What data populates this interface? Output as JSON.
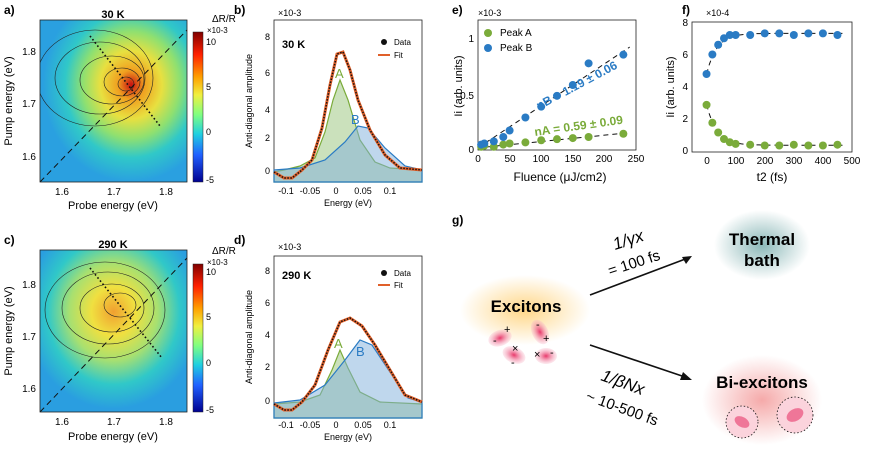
{
  "panels": {
    "a": {
      "letter": "a)",
      "title": "30 K",
      "xlabel": "Probe energy (eV)",
      "ylabel": "Pump energy (eV)",
      "xticks": [
        "1.6",
        "1.7",
        "1.8"
      ],
      "yticks": [
        "1.8",
        "1.7",
        "1.6"
      ],
      "colorbar": {
        "label": "ΔR/R",
        "exp": "×10-3",
        "ticks": [
          "10",
          "5",
          "0",
          "-5"
        ]
      }
    },
    "b": {
      "letter": "b)",
      "title": "30 K",
      "exp": "×10-3",
      "ylabel": "Anti-diagonal amplitude",
      "xlabel": "Energy (eV)",
      "xticks": [
        "-0.1",
        "-0.05",
        "0",
        "0.05",
        "0.1"
      ],
      "yticks": [
        "8",
        "6",
        "4",
        "2",
        "0"
      ],
      "legend": [
        "Data",
        "Fit"
      ],
      "peak_labels": [
        "A",
        "B"
      ]
    },
    "c": {
      "letter": "c)",
      "title": "290 K",
      "xlabel": "Probe energy (eV)",
      "ylabel": "Pump energy (eV)",
      "xticks": [
        "1.6",
        "1.7",
        "1.8"
      ],
      "yticks": [
        "1.8",
        "1.7",
        "1.6"
      ],
      "colorbar": {
        "label": "ΔR/R",
        "exp": "×10-3",
        "ticks": [
          "10",
          "5",
          "0",
          "-5"
        ]
      }
    },
    "d": {
      "letter": "d)",
      "title": "290 K",
      "exp": "×10-3",
      "ylabel": "Anti-diagonal amplitude",
      "xlabel": "Energy (eV)",
      "xticks": [
        "-0.1",
        "-0.05",
        "0",
        "0.05",
        "0.1"
      ],
      "yticks": [
        "8",
        "6",
        "4",
        "2",
        "0"
      ],
      "legend": [
        "Data",
        "Fit"
      ],
      "peak_labels": [
        "A",
        "B"
      ]
    },
    "e": {
      "letter": "e)",
      "exp": "×10-3",
      "ylabel": "Ii (arb. units)",
      "xlabel": "Fluence (μJ/cm2)",
      "xticks": [
        "0",
        "50",
        "100",
        "150",
        "200",
        "250"
      ],
      "yticks": [
        "1",
        "0.5",
        "0"
      ],
      "legend": [
        "Peak A",
        "Peak B"
      ],
      "fit_b": "nB = 1.19 ± 0.06",
      "fit_a": "nA = 0.59 ± 0.09"
    },
    "f": {
      "letter": "f)",
      "exp": "×10-4",
      "ylabel": "Ii (arb. units)",
      "xlabel": "t2 (fs)",
      "xticks": [
        "0",
        "100",
        "200",
        "300",
        "400",
        "500"
      ],
      "yticks": [
        "8",
        "6",
        "4",
        "2",
        "0"
      ]
    },
    "g": {
      "letter": "g)",
      "excitons": "Excitons",
      "thermal": [
        "Thermal",
        "bath"
      ],
      "biexcitons": "Bi-excitons",
      "rate_top": "1/γx",
      "time_top": "= 100 fs",
      "rate_bottom": "1/βNx",
      "time_bottom": "~ 10-500 fs"
    }
  },
  "colors": {
    "green": "#7aab3a",
    "blue": "#2a7bc4",
    "fit": "#e0602a"
  },
  "chart_data": [
    {
      "type": "scatter",
      "panel": "e",
      "xlabel": "Fluence (μJ/cm2)",
      "ylabel": "Ii (arb. units)",
      "xlim": [
        0,
        250
      ],
      "ylim": [
        0,
        1.2
      ],
      "series": [
        {
          "name": "Peak A",
          "x": [
            5,
            10,
            25,
            40,
            50,
            75,
            100,
            125,
            150,
            175,
            230
          ],
          "y": [
            0.03,
            0.04,
            0.03,
            0.05,
            0.06,
            0.07,
            0.09,
            0.1,
            0.11,
            0.12,
            0.15
          ]
        },
        {
          "name": "Peak B",
          "x": [
            5,
            10,
            25,
            40,
            50,
            75,
            100,
            125,
            150,
            175,
            230
          ],
          "y": [
            0.05,
            0.06,
            0.08,
            0.12,
            0.18,
            0.3,
            0.4,
            0.5,
            0.6,
            0.8,
            0.88
          ]
        }
      ]
    },
    {
      "type": "scatter",
      "panel": "f",
      "xlabel": "t2 (fs)",
      "ylabel": "Ii (arb. units)",
      "xlim": [
        -50,
        500
      ],
      "ylim": [
        0,
        8
      ],
      "series": [
        {
          "x": [
            0,
            20,
            40,
            60,
            80,
            100,
            150,
            200,
            250,
            300,
            350,
            400,
            450
          ],
          "y": [
            4.8,
            6.0,
            6.6,
            7.0,
            7.2,
            7.2,
            7.2,
            7.3,
            7.3,
            7.2,
            7.3,
            7.3,
            7.2
          ]
        },
        {
          "x": [
            0,
            20,
            40,
            60,
            80,
            100,
            150,
            200,
            250,
            300,
            350,
            400,
            450
          ],
          "y": [
            2.9,
            1.8,
            1.2,
            0.8,
            0.6,
            0.5,
            0.45,
            0.4,
            0.4,
            0.45,
            0.4,
            0.4,
            0.45
          ]
        }
      ]
    },
    {
      "type": "line",
      "panel": "b",
      "x": [
        -0.1,
        -0.08,
        -0.06,
        -0.04,
        -0.02,
        0,
        0.01,
        0.02,
        0.04,
        0.06,
        0.08,
        0.1,
        0.12,
        0.14
      ],
      "series": [
        {
          "name": "Data",
          "values": [
            -0.5,
            -0.4,
            0.2,
            1.0,
            2.8,
            7.0,
            8.5,
            7.2,
            4.0,
            2.0,
            1.0,
            0.3,
            0.1,
            0.1
          ]
        }
      ]
    },
    {
      "type": "line",
      "panel": "d",
      "x": [
        -0.1,
        -0.08,
        -0.06,
        -0.04,
        -0.02,
        0,
        0.02,
        0.04,
        0.06,
        0.08,
        0.1,
        0.12,
        0.14
      ],
      "series": [
        {
          "name": "Data",
          "values": [
            -0.2,
            -0.3,
            0.2,
            1.0,
            2.5,
            4.8,
            6.0,
            5.8,
            4.5,
            3.0,
            1.2,
            0.2,
            0.1
          ]
        }
      ]
    }
  ]
}
